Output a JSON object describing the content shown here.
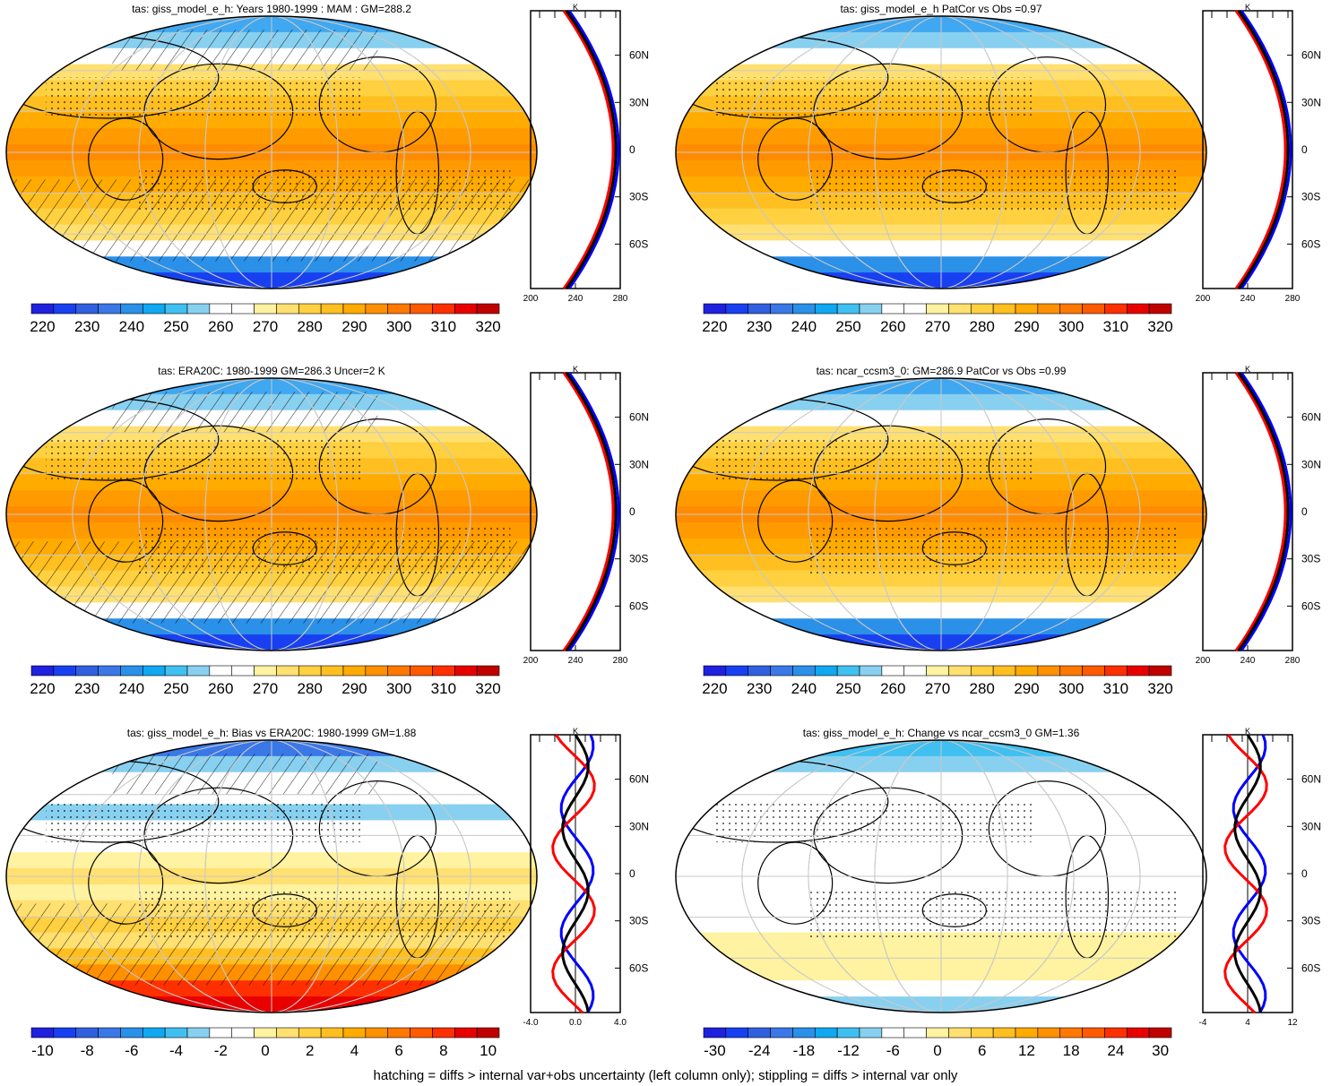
{
  "caption": "hatching = diffs > internal var+obs uncertainty (left column only); stippling = diffs > internal var only",
  "colors": {
    "palette": [
      "#2020e0",
      "#1840f0",
      "#3060e0",
      "#3a78e8",
      "#2a90e8",
      "#10a8f0",
      "#40c0f0",
      "#88d0f0",
      "#ffffff",
      "#ffffff",
      "#fff2a0",
      "#ffe070",
      "#ffd040",
      "#ffbf20",
      "#ffab00",
      "#ff9000",
      "#ff7800",
      "#ff5a00",
      "#ff3000",
      "#e80000",
      "#c00000"
    ],
    "profile_model": "#000000",
    "profile_obs": "#ff0000",
    "profile_alt": "#0000ff"
  },
  "chart_data": [
    {
      "type": "heatmap",
      "title": "tas: giss_model_e_h: Years 1980-1999 : MAM : GM=288.2",
      "colorbar_labels": [
        "220",
        "230",
        "240",
        "250",
        "260",
        "270",
        "280",
        "290",
        "300",
        "310",
        "320"
      ],
      "lat_ticks": [
        "60N",
        "30N",
        "0",
        "30S",
        "60S"
      ],
      "profile_xticks": [
        "200",
        "240",
        "280"
      ],
      "profile_unit": "K"
    },
    {
      "type": "heatmap",
      "title": "tas: giss_model_e_h PatCor vs Obs =0.97",
      "colorbar_labels": [
        "220",
        "230",
        "240",
        "250",
        "260",
        "270",
        "280",
        "290",
        "300",
        "310",
        "320"
      ],
      "lat_ticks": [
        "60N",
        "30N",
        "0",
        "30S",
        "60S"
      ],
      "profile_xticks": [
        "200",
        "240",
        "280"
      ],
      "profile_unit": "K"
    },
    {
      "type": "heatmap",
      "title": "tas: ERA20C: 1980-1999 GM=286.3 Uncer=2 K",
      "colorbar_labels": [
        "220",
        "230",
        "240",
        "250",
        "260",
        "270",
        "280",
        "290",
        "300",
        "310",
        "320"
      ],
      "lat_ticks": [
        "60N",
        "30N",
        "0",
        "30S",
        "60S"
      ],
      "profile_xticks": [
        "200",
        "240",
        "280"
      ],
      "profile_unit": "K"
    },
    {
      "type": "heatmap",
      "title": "tas: ncar_ccsm3_0: GM=286.9 PatCor vs Obs =0.99",
      "colorbar_labels": [
        "220",
        "230",
        "240",
        "250",
        "260",
        "270",
        "280",
        "290",
        "300",
        "310",
        "320"
      ],
      "lat_ticks": [
        "60N",
        "30N",
        "0",
        "30S",
        "60S"
      ],
      "profile_xticks": [
        "200",
        "240",
        "280"
      ],
      "profile_unit": "K"
    },
    {
      "type": "heatmap",
      "title": "tas: giss_model_e_h: Bias vs ERA20C: 1980-1999 GM=1.88",
      "colorbar_labels": [
        "-10",
        "-8",
        "-6",
        "-4",
        "-2",
        "0",
        "2",
        "4",
        "6",
        "8",
        "10"
      ],
      "lat_ticks": [
        "60N",
        "30N",
        "0",
        "30S",
        "60S"
      ],
      "profile_xticks": [
        "-4.0",
        "0.0",
        "4.0"
      ],
      "profile_unit": "K"
    },
    {
      "type": "heatmap",
      "title": "tas: giss_model_e_h: Change vs ncar_ccsm3_0 GM=1.36",
      "colorbar_labels": [
        "-30",
        "-24",
        "-18",
        "-12",
        "-6",
        "0",
        "6",
        "12",
        "18",
        "24",
        "30"
      ],
      "lat_ticks": [
        "60N",
        "30N",
        "0",
        "30S",
        "60S"
      ],
      "profile_xticks": [
        "-4",
        "4",
        "12"
      ],
      "profile_unit": "K"
    }
  ]
}
